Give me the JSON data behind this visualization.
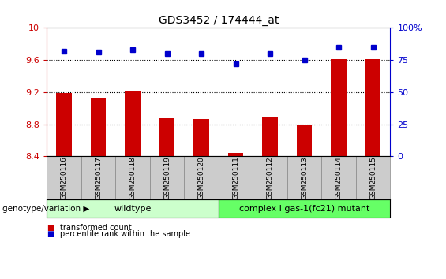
{
  "title": "GDS3452 / 174444_at",
  "samples": [
    "GSM250116",
    "GSM250117",
    "GSM250118",
    "GSM250119",
    "GSM250120",
    "GSM250111",
    "GSM250112",
    "GSM250113",
    "GSM250114",
    "GSM250115"
  ],
  "bar_values": [
    9.19,
    9.13,
    9.22,
    8.87,
    8.86,
    8.44,
    8.89,
    8.8,
    9.61,
    9.61
  ],
  "dot_values": [
    82,
    81,
    83,
    80,
    80,
    72,
    80,
    75,
    85,
    85
  ],
  "ylim_left": [
    8.4,
    10.0
  ],
  "ylim_right": [
    0,
    100
  ],
  "yticks_left": [
    8.4,
    8.8,
    9.2,
    9.6,
    10.0
  ],
  "yticks_right": [
    0,
    25,
    50,
    75,
    100
  ],
  "ytick_labels_left": [
    "8.4",
    "8.8",
    "9.2",
    "9.6",
    "10"
  ],
  "ytick_labels_right": [
    "0",
    "25",
    "50",
    "75",
    "100%"
  ],
  "bar_color": "#cc0000",
  "dot_color": "#0000cc",
  "bg_color": "#ffffff",
  "plot_bg_color": "#ffffff",
  "wildtype_label": "wildtype",
  "mutant_label": "complex I gas-1(fc21) mutant",
  "group_label": "genotype/variation",
  "n_wildtype": 5,
  "n_mutant": 5,
  "wildtype_color": "#ccffcc",
  "mutant_color": "#66ff66",
  "legend_bar_label": "transformed count",
  "legend_dot_label": "percentile rank within the sample",
  "dotted_yticks": [
    8.8,
    9.2,
    9.6
  ],
  "xtick_bg_color": "#cccccc",
  "xtick_border_color": "#888888"
}
